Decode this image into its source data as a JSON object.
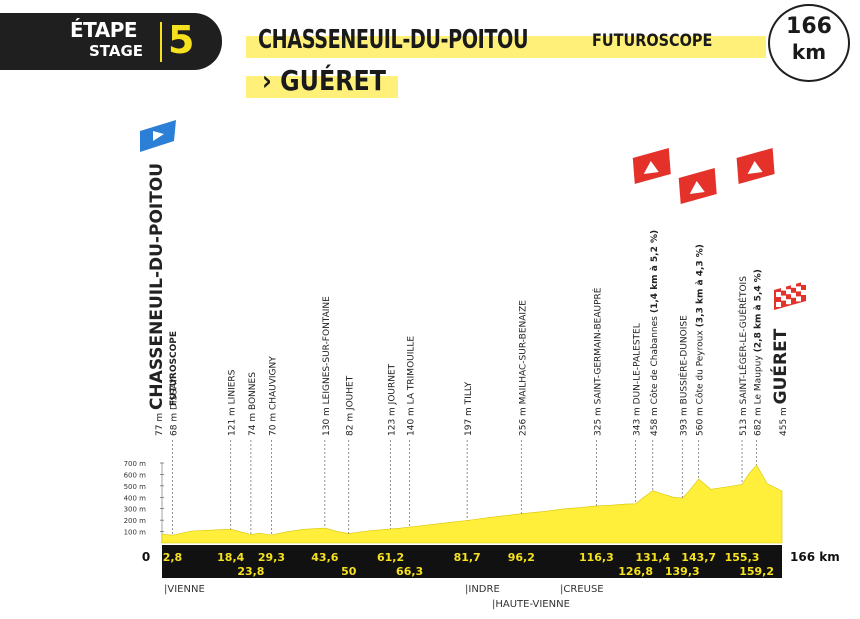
{
  "header": {
    "etape_label": "ÉTAPE",
    "stage_label": "STAGE",
    "stage_number": "5",
    "start_town": "CHASSENEUIL-DU-POITOU",
    "start_subtitle": "FUTUROSCOPE",
    "finish_prefix": "›",
    "finish_town": "GUÉRET",
    "distance_value": "166",
    "distance_unit": "km"
  },
  "colors": {
    "yellow": "#f5e11e",
    "highlight": "#fff07a",
    "profile_fill": "#ffef3a",
    "dark": "#1f1f1f",
    "climb_red": "#e4322b",
    "start_flag": "#2b7fd6"
  },
  "chart_data": {
    "type": "area",
    "title": "",
    "xlabel": "",
    "ylabel": "",
    "xlim": [
      0,
      166
    ],
    "ylim": [
      0,
      700
    ],
    "x_start_label": "0",
    "x_end_label": "166 km",
    "y_ticks": [
      "100 m",
      "200 m",
      "300 m",
      "400 m",
      "500 m",
      "600 m",
      "700 m"
    ],
    "y_tick_values": [
      100,
      200,
      300,
      400,
      500,
      600,
      700
    ],
    "profile": {
      "x": [
        0,
        2.8,
        8,
        14,
        18.4,
        21,
        23.8,
        26,
        29.3,
        33,
        38,
        43.6,
        47,
        50,
        55,
        61.2,
        64,
        66.3,
        72,
        78,
        81.7,
        88,
        96.2,
        102,
        108,
        112,
        116.3,
        120,
        124,
        126.8,
        129,
        131.4,
        134,
        137,
        139.3,
        141,
        143.7,
        147,
        151,
        155.3,
        157,
        159.2,
        162,
        166
      ],
      "y": [
        77,
        68,
        105,
        115,
        121,
        98,
        74,
        85,
        70,
        95,
        120,
        130,
        100,
        82,
        105,
        123,
        130,
        140,
        160,
        185,
        197,
        225,
        256,
        275,
        300,
        310,
        325,
        330,
        340,
        343,
        400,
        458,
        430,
        400,
        393,
        450,
        560,
        470,
        490,
        513,
        600,
        682,
        520,
        455
      ]
    },
    "waypoints": [
      {
        "km": "0",
        "alt": "77 m",
        "name": "CHASSENEUIL-DU-POITOU",
        "sub": "FUTUROSCOPE",
        "type": "start"
      },
      {
        "km": "2,8",
        "alt": "68 m",
        "name": "DISSAY"
      },
      {
        "km": "18,4",
        "alt": "121 m",
        "name": "LINIERS"
      },
      {
        "km": "23,8",
        "alt": "74 m",
        "name": "BONNES"
      },
      {
        "km": "29,3",
        "alt": "70 m",
        "name": "CHAUVIGNY"
      },
      {
        "km": "43,6",
        "alt": "130 m",
        "name": "LEIGNES-SUR-FONTAINE"
      },
      {
        "km": "50",
        "alt": "82 m",
        "name": "JOUHET"
      },
      {
        "km": "61,2",
        "alt": "123 m",
        "name": "JOURNET"
      },
      {
        "km": "66,3",
        "alt": "140 m",
        "name": "LA TRIMOUILLE"
      },
      {
        "km": "81,7",
        "alt": "197 m",
        "name": "TILLY"
      },
      {
        "km": "96,2",
        "alt": "256 m",
        "name": "MAILHAC-SUR-BENAIZE"
      },
      {
        "km": "116,3",
        "alt": "325 m",
        "name": "SAINT-GERMAIN-BEAUPRÉ"
      },
      {
        "km": "126,8",
        "alt": "343 m",
        "name": "DUN-LE-PALESTEL"
      },
      {
        "km": "131,4",
        "alt": "458 m",
        "name": "Côte de Chabannes",
        "climb": "(1,4 km à 5,2 %)",
        "type": "climb"
      },
      {
        "km": "139,3",
        "alt": "393 m",
        "name": "BUSSIÈRE-DUNOISE"
      },
      {
        "km": "143,7",
        "alt": "560 m",
        "name": "Côte du Peyroux",
        "climb": "(3,3 km à 4,3 %)",
        "type": "climb"
      },
      {
        "km": "155,3",
        "alt": "513 m",
        "name": "SAINT-LÉGER-LE-GUÉRÉTOIS"
      },
      {
        "km": "159,2",
        "alt": "682 m",
        "name": "Le Maupuy",
        "climb": "(2,8 km à 5,4 %)",
        "type": "climb"
      },
      {
        "km": "166",
        "alt": "455 m",
        "name": "GUÉRET",
        "type": "finish"
      }
    ],
    "departments": [
      {
        "name": "VIENNE"
      },
      {
        "name": "INDRE"
      },
      {
        "name": "HAUTE-VIENNE"
      },
      {
        "name": "CREUSE"
      }
    ]
  }
}
